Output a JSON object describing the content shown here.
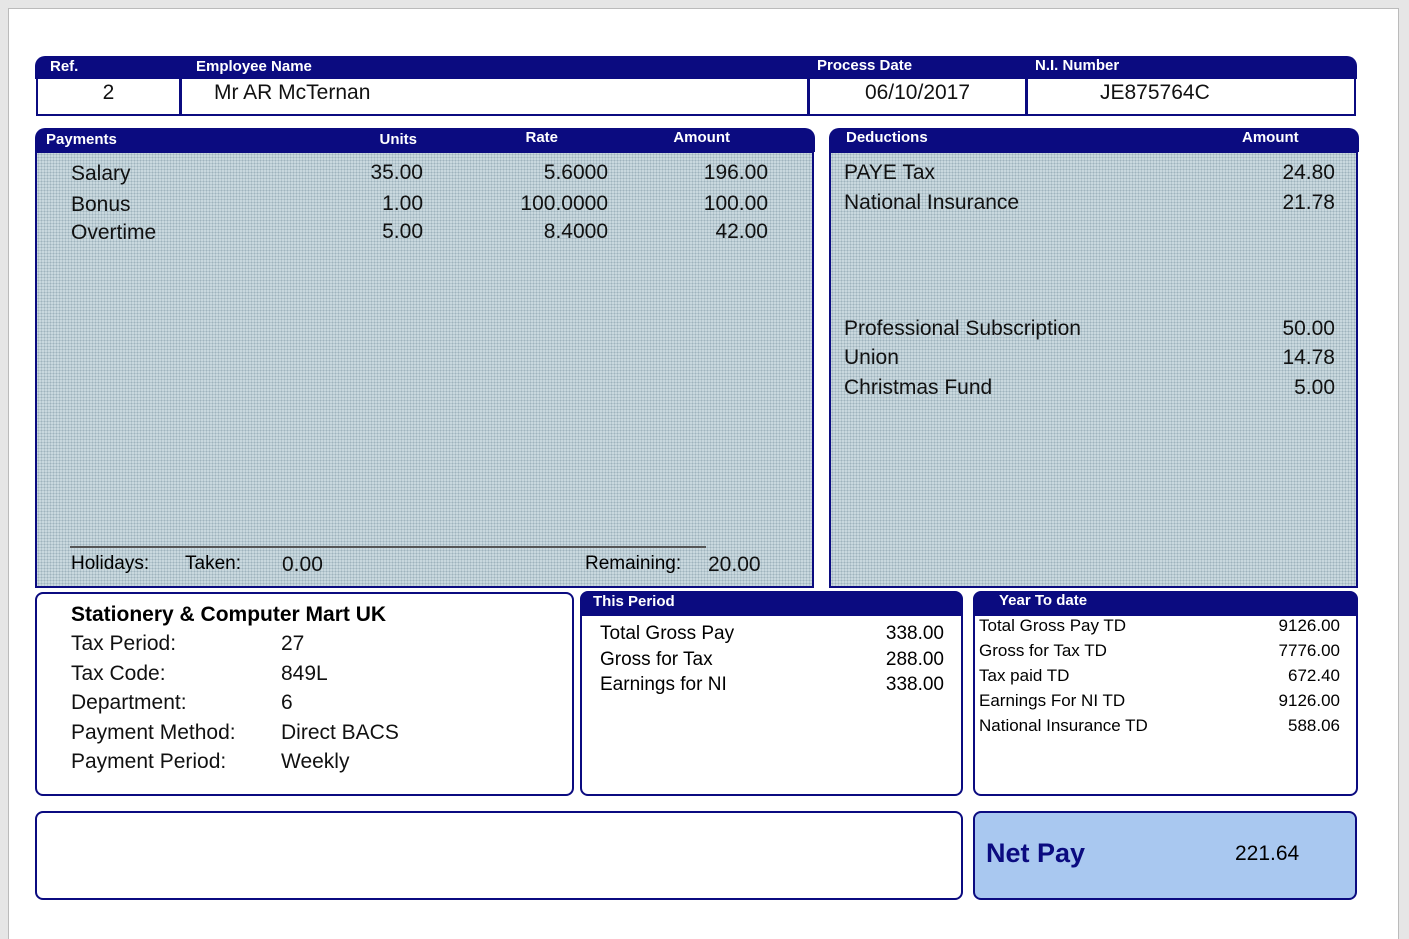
{
  "header": {
    "labels": {
      "ref": "Ref.",
      "employee_name": "Employee Name",
      "process_date": "Process Date",
      "ni_number": "N.I. Number"
    },
    "ref": "2",
    "employee_name": "Mr AR McTernan",
    "process_date": "06/10/2017",
    "ni_number": "JE875764C"
  },
  "payments": {
    "title": "Payments",
    "columns": [
      "Units",
      "Rate",
      "Amount"
    ],
    "rows": [
      [
        "Salary",
        "35.00",
        "5.6000",
        "196.00"
      ],
      [
        "Bonus",
        "1.00",
        "100.0000",
        "100.00"
      ],
      [
        "Overtime",
        "5.00",
        "8.4000",
        "42.00"
      ]
    ],
    "holidays": {
      "label": "Holidays:",
      "taken_label": "Taken:",
      "taken": "0.00",
      "remaining_label": "Remaining:",
      "remaining": "20.00"
    }
  },
  "deductions": {
    "title": "Deductions",
    "amount_label": "Amount",
    "rows": [
      [
        "PAYE Tax",
        "24.80"
      ],
      [
        "National Insurance",
        "21.78"
      ],
      [
        "Professional Subscription",
        "50.00"
      ],
      [
        "Union",
        "14.78"
      ],
      [
        "Christmas Fund",
        "5.00"
      ]
    ]
  },
  "employer": {
    "company": "Stationery & Computer Mart UK",
    "rows": [
      [
        "Tax Period:",
        "27"
      ],
      [
        "Tax Code:",
        "849L"
      ],
      [
        "Department:",
        "6"
      ],
      [
        "Payment Method:",
        "Direct BACS"
      ],
      [
        "Payment Period:",
        "Weekly"
      ]
    ]
  },
  "this_period": {
    "title": "This Period",
    "rows": [
      [
        "Total Gross Pay",
        "338.00"
      ],
      [
        "Gross for Tax",
        "288.00"
      ],
      [
        "Earnings for NI",
        "338.00"
      ]
    ]
  },
  "year_to_date": {
    "title": "Year To date",
    "rows": [
      [
        "Total Gross Pay TD",
        "9126.00"
      ],
      [
        "Gross for Tax TD",
        "7776.00"
      ],
      [
        "Tax paid TD",
        "672.40"
      ],
      [
        "Earnings For NI TD",
        "9126.00"
      ],
      [
        "National Insurance TD",
        "588.06"
      ]
    ]
  },
  "net_pay": {
    "label": "Net Pay",
    "value": "221.64"
  }
}
